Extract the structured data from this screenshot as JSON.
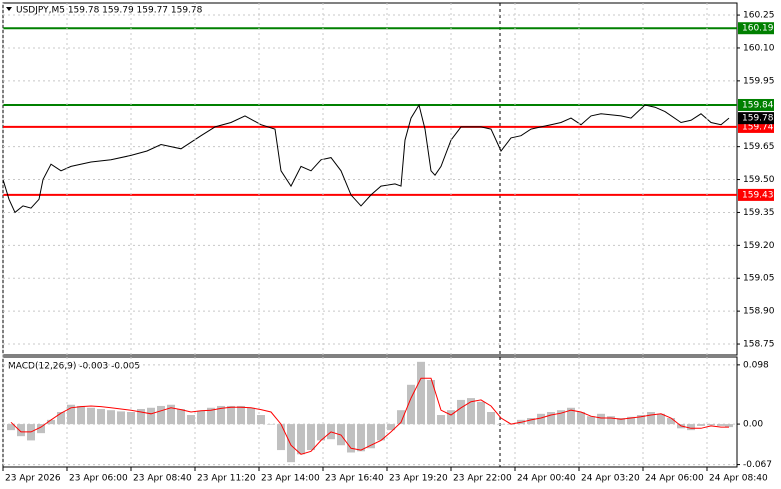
{
  "chart_data": [
    {
      "type": "line",
      "title": "USDJPY,M5  159.78 159.79 159.77 159.78",
      "x": [
        0,
        3,
        6,
        10,
        14,
        18,
        20,
        24,
        29,
        34,
        44,
        54,
        64,
        72,
        79,
        89,
        99,
        106,
        114,
        121,
        129,
        136,
        139,
        144,
        149,
        154,
        159,
        164,
        169,
        174,
        179,
        184,
        189,
        196,
        199,
        201,
        204,
        208,
        211,
        214,
        216,
        219,
        224,
        229,
        234,
        239,
        244,
        249,
        254,
        259,
        264,
        269,
        274,
        279,
        284,
        289,
        294,
        299,
        309,
        314,
        321,
        326,
        331,
        339,
        344,
        349,
        354,
        359,
        363
      ],
      "series": [
        {
          "color": "#000000",
          "values": [
            159.5,
            159.41,
            159.35,
            159.38,
            159.37,
            159.41,
            159.5,
            159.57,
            159.54,
            159.56,
            159.58,
            159.59,
            159.61,
            159.63,
            159.66,
            159.64,
            159.7,
            159.74,
            159.76,
            159.79,
            159.75,
            159.73,
            159.54,
            159.47,
            159.56,
            159.54,
            159.59,
            159.6,
            159.54,
            159.43,
            159.38,
            159.43,
            159.47,
            159.48,
            159.47,
            159.68,
            159.78,
            159.84,
            159.73,
            159.54,
            159.52,
            159.56,
            159.68,
            159.74,
            159.74,
            159.74,
            159.73,
            159.63,
            159.69,
            159.7,
            159.73,
            159.74,
            159.75,
            159.76,
            159.78,
            159.75,
            159.79,
            159.8,
            159.79,
            159.78,
            159.84,
            159.83,
            159.81,
            159.76,
            159.77,
            159.8,
            159.76,
            159.75,
            159.78
          ]
        }
      ],
      "xlim": [
        0,
        367
      ],
      "ylim": [
        158.7,
        160.305
      ],
      "yticks": [
        160.25,
        {
          "value": 160.1,
          "label": "160.10"
        },
        159.95,
        159.65,
        {
          "value": 159.5,
          "label": "159.50"
        },
        159.35,
        {
          "value": 159.2,
          "label": "159.20"
        },
        159.05,
        {
          "value": 158.9,
          "label": "158.90"
        },
        158.75
      ],
      "grid": true,
      "levels": [
        {
          "value": 160.19,
          "color": "#008000"
        },
        {
          "value": 159.84,
          "color": "#008000"
        },
        {
          "value": 159.74,
          "color": "#ff0000"
        },
        {
          "value": 159.43,
          "color": "#ff0000"
        }
      ],
      "last_price": 159.78
    },
    {
      "type": "macd",
      "title": "MACD(12,26,9) -0.003 -0.005",
      "x": [
        4,
        9,
        14,
        19,
        24,
        29,
        34,
        39,
        44,
        49,
        54,
        59,
        64,
        69,
        74,
        79,
        84,
        89,
        94,
        99,
        104,
        109,
        114,
        119,
        124,
        129,
        134,
        139,
        144,
        149,
        154,
        159,
        164,
        169,
        174,
        179,
        184,
        189,
        194,
        199,
        204,
        209,
        214,
        219,
        224,
        229,
        234,
        239,
        244,
        249,
        254,
        259,
        264,
        269,
        274,
        279,
        284,
        289,
        294,
        299,
        304,
        309,
        314,
        319,
        324,
        329,
        334,
        339,
        344,
        349,
        354,
        359,
        363
      ],
      "series": [
        {
          "kind": "histogram",
          "color": "#c0c0c0",
          "values": [
            -0.01,
            -0.02,
            -0.027,
            -0.015,
            0.007,
            0.02,
            0.032,
            0.03,
            0.027,
            0.025,
            0.023,
            0.021,
            0.02,
            0.025,
            0.027,
            0.03,
            0.032,
            0.025,
            0.015,
            0.022,
            0.027,
            0.03,
            0.03,
            0.03,
            0.027,
            0.015,
            0,
            -0.043,
            -0.063,
            -0.05,
            -0.043,
            -0.027,
            -0.025,
            -0.035,
            -0.047,
            -0.045,
            -0.04,
            -0.027,
            -0.01,
            0.023,
            0.065,
            0.103,
            0.073,
            0.015,
            0.023,
            0.04,
            0.043,
            0.037,
            0.02,
            0,
            0,
            0.007,
            0.01,
            0.017,
            0.02,
            0.023,
            0.027,
            0.02,
            0.013,
            0.017,
            0.013,
            0.01,
            0.012,
            0.015,
            0.02,
            0.017,
            0.01,
            -0.007,
            -0.01,
            -0.003,
            -0.002,
            -0.003,
            -0.005
          ]
        },
        {
          "kind": "line",
          "color": "#ff0000",
          "values": [
            0.003,
            -0.013,
            -0.013,
            -0.005,
            0.007,
            0.018,
            0.027,
            0.029,
            0.03,
            0.029,
            0.027,
            0.025,
            0.023,
            0.02,
            0.017,
            0.022,
            0.027,
            0.024,
            0.02,
            0.022,
            0.023,
            0.026,
            0.028,
            0.028,
            0.027,
            0.024,
            0.02,
            0,
            -0.035,
            -0.05,
            -0.045,
            -0.027,
            -0.013,
            -0.018,
            -0.04,
            -0.043,
            -0.035,
            -0.027,
            -0.013,
            0.003,
            0.043,
            0.076,
            0.076,
            0.023,
            0.015,
            0.027,
            0.037,
            0.04,
            0.03,
            0.01,
            0,
            0.003,
            0.007,
            0.01,
            0.015,
            0.018,
            0.023,
            0.02,
            0.013,
            0.01,
            0.01,
            0.008,
            0.01,
            0.012,
            0.015,
            0.017,
            0.01,
            -0.003,
            -0.007,
            -0.007,
            -0.003,
            -0.005,
            -0.005
          ]
        }
      ],
      "xlim": [
        0,
        367
      ],
      "ylim": [
        -0.071,
        0.111
      ],
      "yticks": [
        0.098,
        {
          "value": 0,
          "label": "0.00"
        },
        -0.067
      ],
      "xticks": [
        {
          "value": 0,
          "label": "23 Apr 2026"
        },
        {
          "value": 32,
          "label": "23 Apr 06:00"
        },
        {
          "value": 64,
          "label": "23 Apr 08:40"
        },
        {
          "value": 96,
          "label": "23 Apr 11:20"
        },
        {
          "value": 128,
          "label": "23 Apr 14:00"
        },
        {
          "value": 160,
          "label": "23 Apr 16:40"
        },
        {
          "value": 192,
          "label": "23 Apr 19:20"
        },
        {
          "value": 224,
          "label": "23 Apr 22:00"
        },
        {
          "value": 256,
          "label": "24 Apr 00:40"
        },
        {
          "value": 288,
          "label": "24 Apr 03:20"
        },
        {
          "value": 320,
          "label": "24 Apr 06:00"
        },
        {
          "value": 352,
          "label": "24 Apr 08:40"
        }
      ],
      "grid": true
    }
  ]
}
